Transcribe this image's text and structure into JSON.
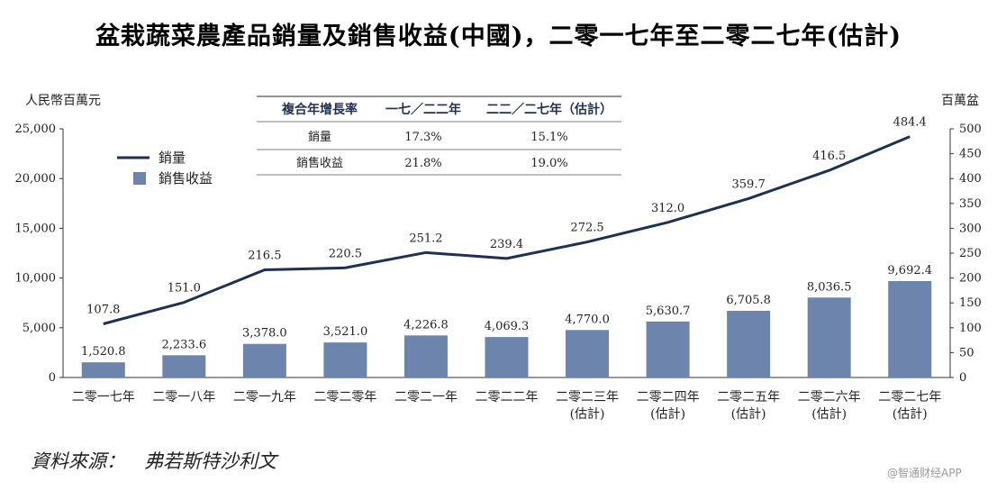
{
  "title": "盆栽蔬菜農產品銷量及銷售收益(中國)，二零一七年至二零二七年(估計)",
  "source": "資料來源：　弗若斯特沙利文",
  "watermark": "@智通财经APP",
  "colors": {
    "bar": "#6d85ad",
    "line": "#1f3152",
    "axis": "#333333"
  },
  "chart_data": {
    "type": "bar+line",
    "categories": [
      [
        "二零一七年"
      ],
      [
        "二零一八年"
      ],
      [
        "二零一九年"
      ],
      [
        "二零二零年"
      ],
      [
        "二零二一年"
      ],
      [
        "二零二二年"
      ],
      [
        "二零二三年",
        "(估計)"
      ],
      [
        "二零二四年",
        "(估計)"
      ],
      [
        "二零二五年",
        "(估計)"
      ],
      [
        "二零二六年",
        "(估計)"
      ],
      [
        "二零二七年",
        "(估計)"
      ]
    ],
    "left_axis": {
      "unit": "人民幣百萬元",
      "range": [
        0,
        25000
      ],
      "ticks": [
        0,
        5000,
        10000,
        15000,
        20000,
        25000
      ],
      "tick_labels": [
        "0",
        "5,000",
        "10,000",
        "15,000",
        "20,000",
        "25,000"
      ]
    },
    "right_axis": {
      "unit": "百萬盆",
      "range": [
        0,
        500
      ],
      "ticks": [
        0,
        50,
        100,
        150,
        200,
        250,
        300,
        350,
        400,
        450,
        500
      ]
    },
    "series": [
      {
        "name": "銷量",
        "kind": "line",
        "axis": "right",
        "values": [
          107.8,
          151.0,
          216.5,
          220.5,
          251.2,
          239.4,
          272.5,
          312.0,
          359.7,
          416.5,
          484.4
        ],
        "labels": [
          "107.8",
          "151.0",
          "216.5",
          "220.5",
          "251.2",
          "239.4",
          "272.5",
          "312.0",
          "359.7",
          "416.5",
          "484.4"
        ]
      },
      {
        "name": "銷售收益",
        "kind": "bar",
        "axis": "left",
        "values": [
          1520.8,
          2233.6,
          3378.0,
          3521.0,
          4226.8,
          4069.3,
          4770.0,
          5630.7,
          6705.8,
          8036.5,
          9692.4
        ],
        "labels": [
          "1,520.8",
          "2,233.6",
          "3,378.0",
          "3,521.0",
          "4,226.8",
          "4,069.3",
          "4,770.0",
          "5,630.7",
          "6,705.8",
          "8,036.5",
          "9,692.4"
        ]
      }
    ],
    "legend": {
      "placement": "top-left",
      "items": [
        "銷量",
        "銷售收益"
      ]
    },
    "cagr_table": {
      "headers": [
        "複合年增長率",
        "一七／二二年",
        "二二／二七年（估計）"
      ],
      "rows": [
        [
          "銷量",
          "17.3%",
          "15.1%"
        ],
        [
          "銷售收益",
          "21.8%",
          "19.0%"
        ]
      ]
    }
  }
}
